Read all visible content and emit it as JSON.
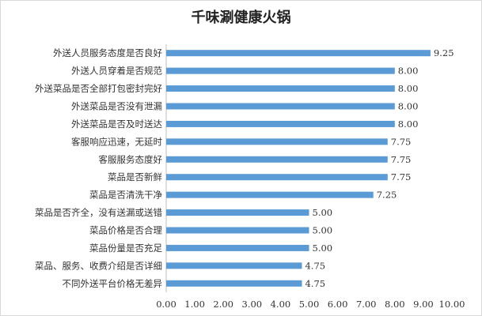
{
  "chart_data": {
    "type": "bar",
    "orientation": "horizontal",
    "title": "千味涮健康火锅",
    "categories": [
      "外送人员服务态度是否良好",
      "外送人员穿着是否规范",
      "外送菜品是否全部打包密封完好",
      "外送菜品是否没有泄漏",
      "外送菜品是否及时送达",
      "客服响应迅速，无延时",
      "客服服务态度好",
      "菜品是否新鲜",
      "菜品是否清洗干净",
      "菜品是否齐全，没有送漏或送错",
      "菜品价格是否合理",
      "菜品份量是否充足",
      "菜品、服务、收费介绍是否详细",
      "不同外送平台价格无差异"
    ],
    "values": [
      9.25,
      8.0,
      8.0,
      8.0,
      8.0,
      7.75,
      7.75,
      7.75,
      7.25,
      5.0,
      5.0,
      5.0,
      4.75,
      4.75
    ],
    "value_labels": [
      "9.25",
      "8.00",
      "8.00",
      "8.00",
      "8.00",
      "7.75",
      "7.75",
      "7.75",
      "7.25",
      "5.00",
      "5.00",
      "5.00",
      "4.75",
      "4.75"
    ],
    "xlim": [
      0,
      10
    ],
    "x_ticks": [
      "0.00",
      "1.00",
      "2.00",
      "3.00",
      "4.00",
      "5.00",
      "6.00",
      "7.00",
      "8.00",
      "9.00",
      "10.00"
    ],
    "bar_color": "#5b9bd5",
    "grid": false,
    "legend": "none"
  }
}
